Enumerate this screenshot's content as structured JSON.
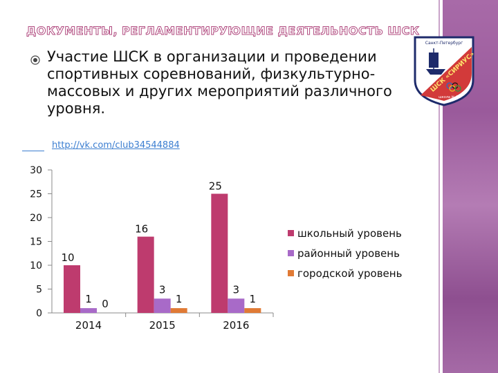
{
  "slide": {
    "title": "ДОКУМЕНТЫ, РЕГЛАМЕНТИРУЮЩИЕ ДЕЯТЕЛЬНОСТЬ ШСК",
    "bullet_text": "Участие ШСК в организации и проведении спортивных соревнований, физкультурно-массовых и других мероприятий различного уровня.",
    "link": "http://vk.com/club34544884",
    "emblem": {
      "top_text": "Санкт-Петербург",
      "arc_text": "ШСК «СИРИУС»",
      "bottom_text": "школа № 52"
    }
  },
  "chart_data": {
    "type": "bar",
    "categories": [
      "2014",
      "2015",
      "2016"
    ],
    "series": [
      {
        "name": "школьный уровень",
        "values": [
          10,
          16,
          25
        ],
        "color": "#be3b6e"
      },
      {
        "name": "районный уровень",
        "values": [
          1,
          3,
          3
        ],
        "color": "#a86ac8"
      },
      {
        "name": "городской уровень",
        "values": [
          0,
          1,
          1
        ],
        "color": "#e07a35"
      }
    ],
    "ylim": [
      0,
      30
    ],
    "yticks": [
      "0",
      "5",
      "10",
      "15",
      "20",
      "25",
      "30"
    ],
    "legend_position": "right",
    "grid": false
  }
}
